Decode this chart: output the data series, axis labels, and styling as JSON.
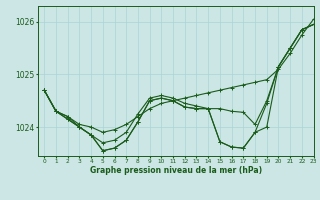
{
  "background_color": "#cce5e5",
  "grid_color": "#aad4d4",
  "line_color": "#1a5c1a",
  "title": "Graphe pression niveau de la mer (hPa)",
  "xlim": [
    -0.5,
    23
  ],
  "ylim": [
    1023.45,
    1026.3
  ],
  "yticks": [
    1024,
    1025,
    1026
  ],
  "xticks": [
    0,
    1,
    2,
    3,
    4,
    5,
    6,
    7,
    8,
    9,
    10,
    11,
    12,
    13,
    14,
    15,
    16,
    17,
    18,
    19,
    20,
    21,
    22,
    23
  ],
  "line1_y": [
    1024.7,
    1024.3,
    1024.2,
    1024.05,
    1024.0,
    1023.9,
    1023.95,
    1024.05,
    1024.2,
    1024.35,
    1024.45,
    1024.5,
    1024.55,
    1024.6,
    1024.65,
    1024.7,
    1024.75,
    1024.8,
    1024.85,
    1024.9,
    1025.1,
    1025.4,
    1025.75,
    1026.05
  ],
  "line2_y": [
    1024.7,
    1024.3,
    1024.2,
    1024.0,
    1023.85,
    1023.7,
    1023.75,
    1023.9,
    1024.25,
    1024.55,
    1024.6,
    1024.55,
    1024.45,
    1024.4,
    1024.35,
    1024.35,
    1024.3,
    1024.28,
    1024.05,
    1024.5,
    1025.15,
    1025.5,
    1025.85,
    1025.95
  ],
  "line3_y": [
    1024.7,
    1024.3,
    1024.15,
    1024.0,
    1023.85,
    1023.55,
    1023.6,
    1023.75,
    1024.1,
    1024.5,
    1024.55,
    1024.5,
    1024.38,
    1024.35,
    1024.35,
    1023.72,
    1023.62,
    1023.6,
    1023.9,
    1024.45,
    1025.15,
    1025.5,
    1025.85,
    1025.95
  ],
  "line4_y": [
    1024.7,
    1024.3,
    1024.15,
    1024.0,
    1023.85,
    1023.55,
    1023.6,
    1023.75,
    1024.1,
    1024.5,
    1024.55,
    1024.5,
    1024.38,
    1024.35,
    1024.35,
    1023.72,
    1023.62,
    1023.6,
    1023.9,
    1024.0,
    1025.15,
    1025.5,
    1025.85,
    1025.95
  ]
}
